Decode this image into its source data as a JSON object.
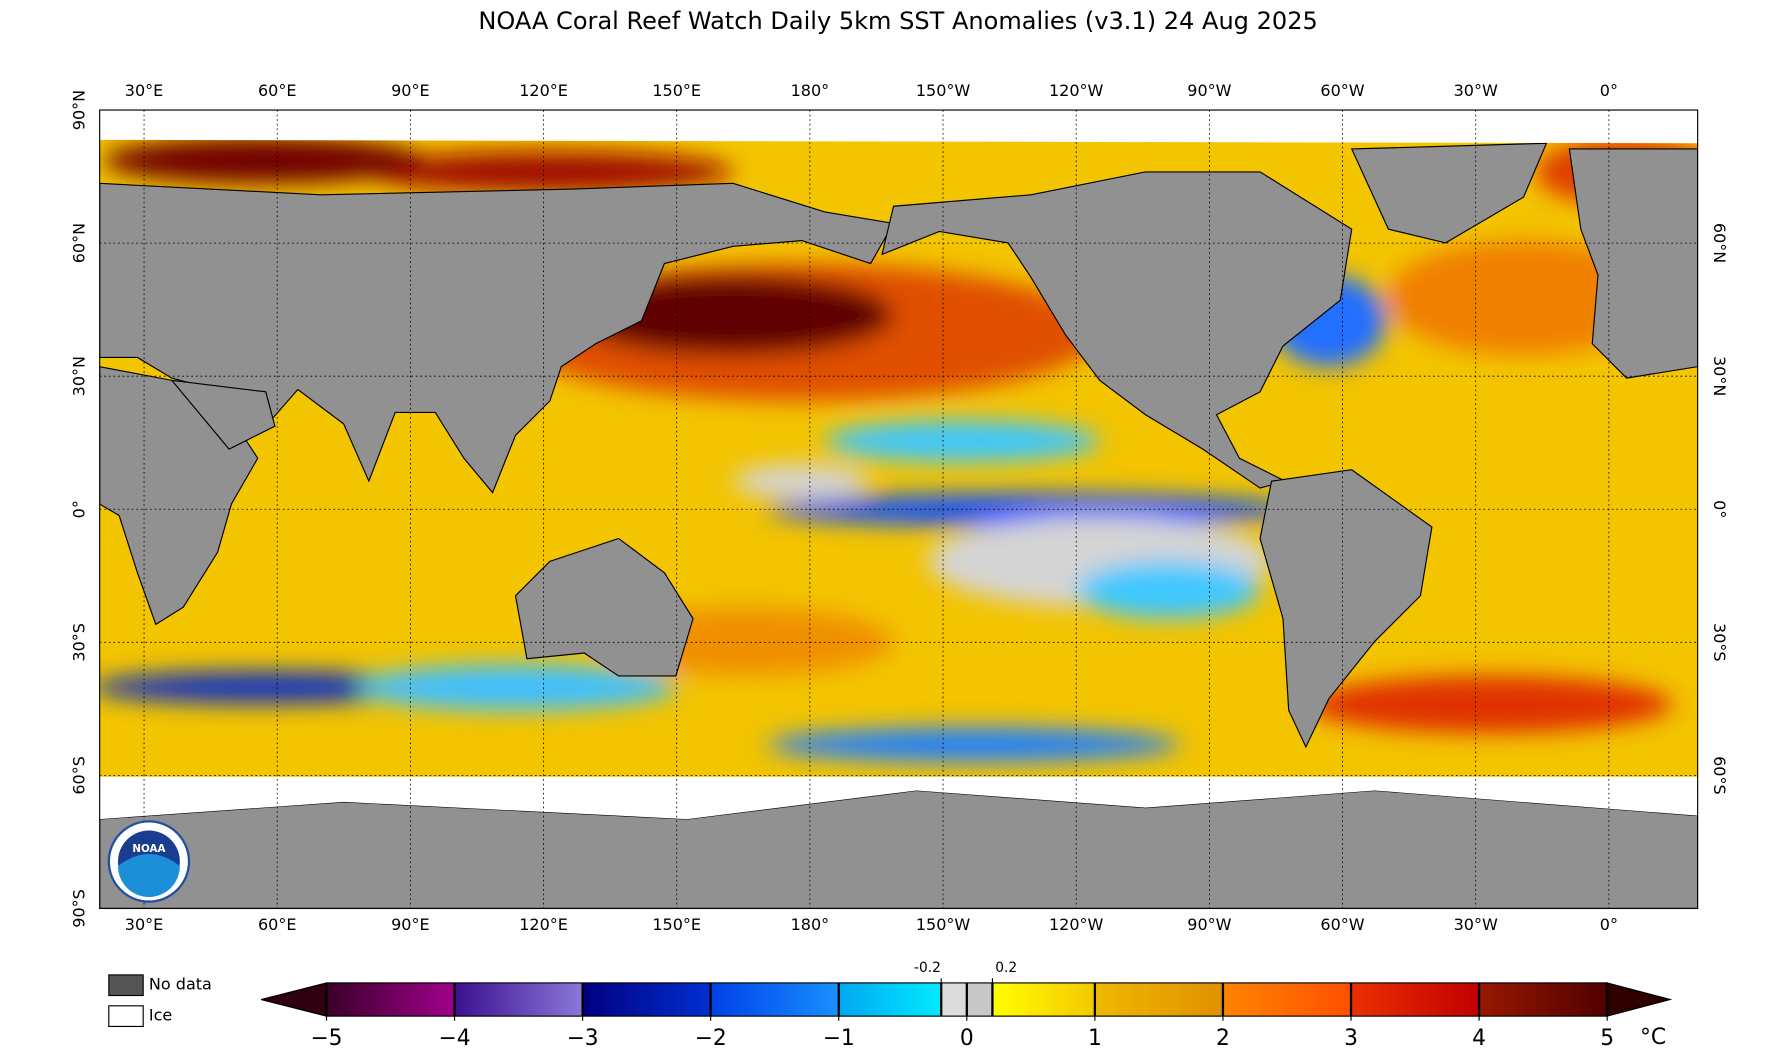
{
  "map": {
    "title": "NOAA Coral Reef Watch Daily 5km SST Anomalies  (v3.1)   24 Aug 2025",
    "xlim": [
      20,
      380
    ],
    "ylim": [
      -90,
      90
    ],
    "lon_ticks": [
      {
        "value": 30,
        "label": "30°E"
      },
      {
        "value": 60,
        "label": "60°E"
      },
      {
        "value": 90,
        "label": "90°E"
      },
      {
        "value": 120,
        "label": "120°E"
      },
      {
        "value": 150,
        "label": "150°E"
      },
      {
        "value": 180,
        "label": "180°"
      },
      {
        "value": 210,
        "label": "150°W"
      },
      {
        "value": 240,
        "label": "120°W"
      },
      {
        "value": 270,
        "label": "90°W"
      },
      {
        "value": 300,
        "label": "60°W"
      },
      {
        "value": 330,
        "label": "30°W"
      },
      {
        "value": 360,
        "label": "0°"
      }
    ],
    "lat_ticks_left": [
      {
        "value": 90,
        "label": "90°N"
      },
      {
        "value": 60,
        "label": "60°N"
      },
      {
        "value": 30,
        "label": "30°N"
      },
      {
        "value": 0,
        "label": "0°"
      },
      {
        "value": -30,
        "label": "30°S"
      },
      {
        "value": -60,
        "label": "60°S"
      },
      {
        "value": -90,
        "label": "90°S"
      }
    ],
    "lat_ticks_right": [
      {
        "value": 60,
        "label": "60°N"
      },
      {
        "value": 30,
        "label": "30°N"
      },
      {
        "value": 0,
        "label": "0°"
      },
      {
        "value": -30,
        "label": "30°S"
      },
      {
        "value": -60,
        "label": "60°S"
      }
    ],
    "grid": true,
    "logo": "NOAA",
    "legend": [
      {
        "name": "No data",
        "color": "#555555"
      },
      {
        "name": "Ice",
        "color": "#ffffff"
      }
    ],
    "colorbar": {
      "lim": [
        -5,
        5
      ],
      "ticks": [
        {
          "value": -5,
          "label": "−5"
        },
        {
          "value": -4,
          "label": "−4"
        },
        {
          "value": -3,
          "label": "−3"
        },
        {
          "value": -2,
          "label": "−2"
        },
        {
          "value": -1,
          "label": "−1"
        },
        0,
        1,
        2,
        3,
        4,
        5
      ],
      "minor_ticks": [
        -0.2,
        0.2
      ],
      "unit": "°C",
      "boundaries": [
        -5,
        -4,
        -3,
        -2,
        -1,
        -0.2,
        0,
        0.2,
        1,
        2,
        3,
        4,
        5
      ],
      "segment_colors": [
        [
          "#3a0028",
          "#a0008c"
        ],
        [
          "#3c1090",
          "#8a78d8"
        ],
        [
          "#000080",
          "#0030d0"
        ],
        [
          "#0040e8",
          "#1890ff"
        ],
        [
          "#00a8f0",
          "#00eaff"
        ],
        [
          "#dcdcdc",
          "#dcdcdc"
        ],
        [
          "#c8c8c8",
          "#c8c8c8"
        ],
        [
          "#ffff00",
          "#f4c800"
        ],
        [
          "#f0b800",
          "#e09000"
        ],
        [
          "#ff8400",
          "#ff5000"
        ],
        [
          "#ec3000",
          "#c00000"
        ],
        [
          "#981800",
          "#500000"
        ]
      ],
      "under_color": "#2e0010",
      "over_color": "#2e0000"
    }
  }
}
